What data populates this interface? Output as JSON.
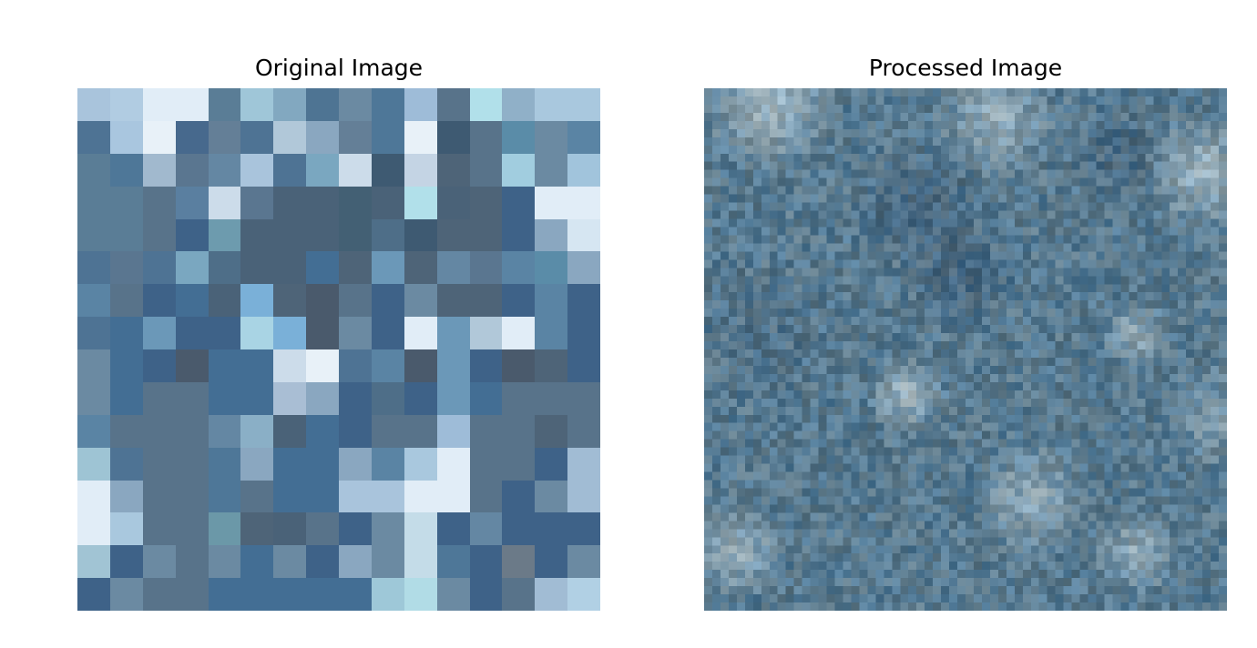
{
  "panels": {
    "left": {
      "title": "Original Image"
    },
    "right": {
      "title": "Processed Image"
    }
  },
  "original_image": {
    "grid_size": 16,
    "rows": [
      [
        "#a9c4dc",
        "#b1cce2",
        "#e1edf7",
        "#e1edf7",
        "#5a7d96",
        "#9fc6d8",
        "#82a8c0",
        "#4e7493",
        "#6b8aa2",
        "#4e7798",
        "#9ebcd8",
        "#58738a",
        "#b1e0ea",
        "#90b0c8",
        "#a9c8de",
        "#a9c8de"
      ],
      [
        "#4e7394",
        "#a9c6df",
        "#e8f1f8",
        "#47698d",
        "#647f97",
        "#4e7394",
        "#b1c8d9",
        "#8aa7c0",
        "#647f97",
        "#4e7798",
        "#e8f1f8",
        "#3e5a72",
        "#58738a",
        "#5a8ca8",
        "#6b8aa2",
        "#5a84a4"
      ],
      [
        "#5a7d96",
        "#4e7798",
        "#a1b9ce",
        "#5a7690",
        "#6487a3",
        "#a9c4dc",
        "#4e7394",
        "#7aa7c0",
        "#ccdcea",
        "#3e5a72",
        "#c4d4e4",
        "#4e6478",
        "#58738a",
        "#a1cddf",
        "#6b8aa2",
        "#a1c4dc"
      ],
      [
        "#5a7d96",
        "#5a7d96",
        "#58738a",
        "#5a7fa0",
        "#ccdcea",
        "#5a7690",
        "#4a6278",
        "#4a6278",
        "#436074",
        "#4a6278",
        "#b1e0ea",
        "#4a6278",
        "#4e6478",
        "#3e6288",
        "#e1edf7",
        "#e1edf7"
      ],
      [
        "#5a7d96",
        "#5a7d96",
        "#58738a",
        "#3e6288",
        "#6d9bae",
        "#4a6278",
        "#4a6278",
        "#4a6278",
        "#436074",
        "#4e6e88",
        "#3e5a72",
        "#4e6478",
        "#4e6478",
        "#3e6288",
        "#8aa7c0",
        "#d6e6f2"
      ],
      [
        "#4e7394",
        "#5a7690",
        "#4e7394",
        "#7aa7c0",
        "#4e6e88",
        "#4a6278",
        "#4a6278",
        "#436e94",
        "#4e6478",
        "#6b98b8",
        "#4e6478",
        "#6487a3",
        "#5a7690",
        "#5a84a4",
        "#5a8ca8",
        "#8aa7c0"
      ],
      [
        "#5a84a4",
        "#58738a",
        "#3e6288",
        "#436e94",
        "#4a6278",
        "#7ab0d8",
        "#4e6478",
        "#4a5a6c",
        "#58738a",
        "#3e6288",
        "#6b8aa2",
        "#4e6478",
        "#4e6478",
        "#3e6288",
        "#5a84a4",
        "#3e6288"
      ],
      [
        "#4e7394",
        "#436e94",
        "#6b98b8",
        "#3e6288",
        "#3e6288",
        "#a9d4e4",
        "#7ab0d8",
        "#4a5a6c",
        "#6b8aa2",
        "#3e6288",
        "#e1edf7",
        "#6b98b8",
        "#b1c8d9",
        "#e1edf7",
        "#5a84a4",
        "#3e6288"
      ],
      [
        "#6b8aa2",
        "#436e94",
        "#3e6288",
        "#4a5a6c",
        "#436e94",
        "#436e94",
        "#ccdcea",
        "#e8f1f8",
        "#4e7394",
        "#5a84a4",
        "#4a5a6c",
        "#6b98b8",
        "#3e6288",
        "#4a5a6c",
        "#4e6478",
        "#3e6288"
      ],
      [
        "#6b8aa2",
        "#436e94",
        "#58738a",
        "#58738a",
        "#436e94",
        "#436e94",
        "#a9bed4",
        "#8aa7c0",
        "#3e6288",
        "#4e6e88",
        "#3e6288",
        "#6b98b8",
        "#436e94",
        "#58738a",
        "#58738a",
        "#58738a"
      ],
      [
        "#5a84a4",
        "#58738a",
        "#58738a",
        "#58738a",
        "#6487a3",
        "#8aafc6",
        "#4a6278",
        "#436e94",
        "#3e6288",
        "#58738a",
        "#58738a",
        "#9ebcd8",
        "#58738a",
        "#58738a",
        "#4e6478",
        "#58738a"
      ],
      [
        "#9ec4d4",
        "#4e7394",
        "#58738a",
        "#58738a",
        "#4e7798",
        "#8aa7c0",
        "#436e94",
        "#436e94",
        "#8aa7c0",
        "#5a84a4",
        "#a9c8de",
        "#e1edf7",
        "#58738a",
        "#58738a",
        "#3e6288",
        "#a1bcd4"
      ],
      [
        "#e1edf7",
        "#8aa7c0",
        "#58738a",
        "#58738a",
        "#4e7798",
        "#58738a",
        "#436e94",
        "#436e94",
        "#a9c4dc",
        "#a9c4dc",
        "#e1edf7",
        "#e1edf7",
        "#58738a",
        "#3e6288",
        "#6b8aa2",
        "#a1bcd4"
      ],
      [
        "#e1edf7",
        "#a9c8de",
        "#58738a",
        "#58738a",
        "#6b98a8",
        "#4e6478",
        "#4a6278",
        "#58738a",
        "#3e6288",
        "#6b8aa2",
        "#c4dce8",
        "#3e6288",
        "#6487a3",
        "#3e6288",
        "#3e6288",
        "#3e6288"
      ],
      [
        "#a1c4d4",
        "#3e6288",
        "#6b8aa2",
        "#58738a",
        "#6b8aa2",
        "#436e94",
        "#6b8aa2",
        "#3e6288",
        "#8aa7c0",
        "#6b8aa2",
        "#c4dce8",
        "#4e7798",
        "#3e6288",
        "#6b7a88",
        "#3e6288",
        "#6b8aa2"
      ],
      [
        "#3e6288",
        "#6b8aa2",
        "#58738a",
        "#58738a",
        "#436e94",
        "#436e94",
        "#436e94",
        "#436e94",
        "#436e94",
        "#9ec8d8",
        "#b1dce6",
        "#6b8aa2",
        "#3e6288",
        "#58738a",
        "#a1bcd4",
        "#b1d0e4"
      ]
    ]
  },
  "processed_image": {
    "grid_size": 64,
    "base_color": "#587a90",
    "accent_light": "#c8d8de",
    "accent_dark": "#34506a"
  }
}
